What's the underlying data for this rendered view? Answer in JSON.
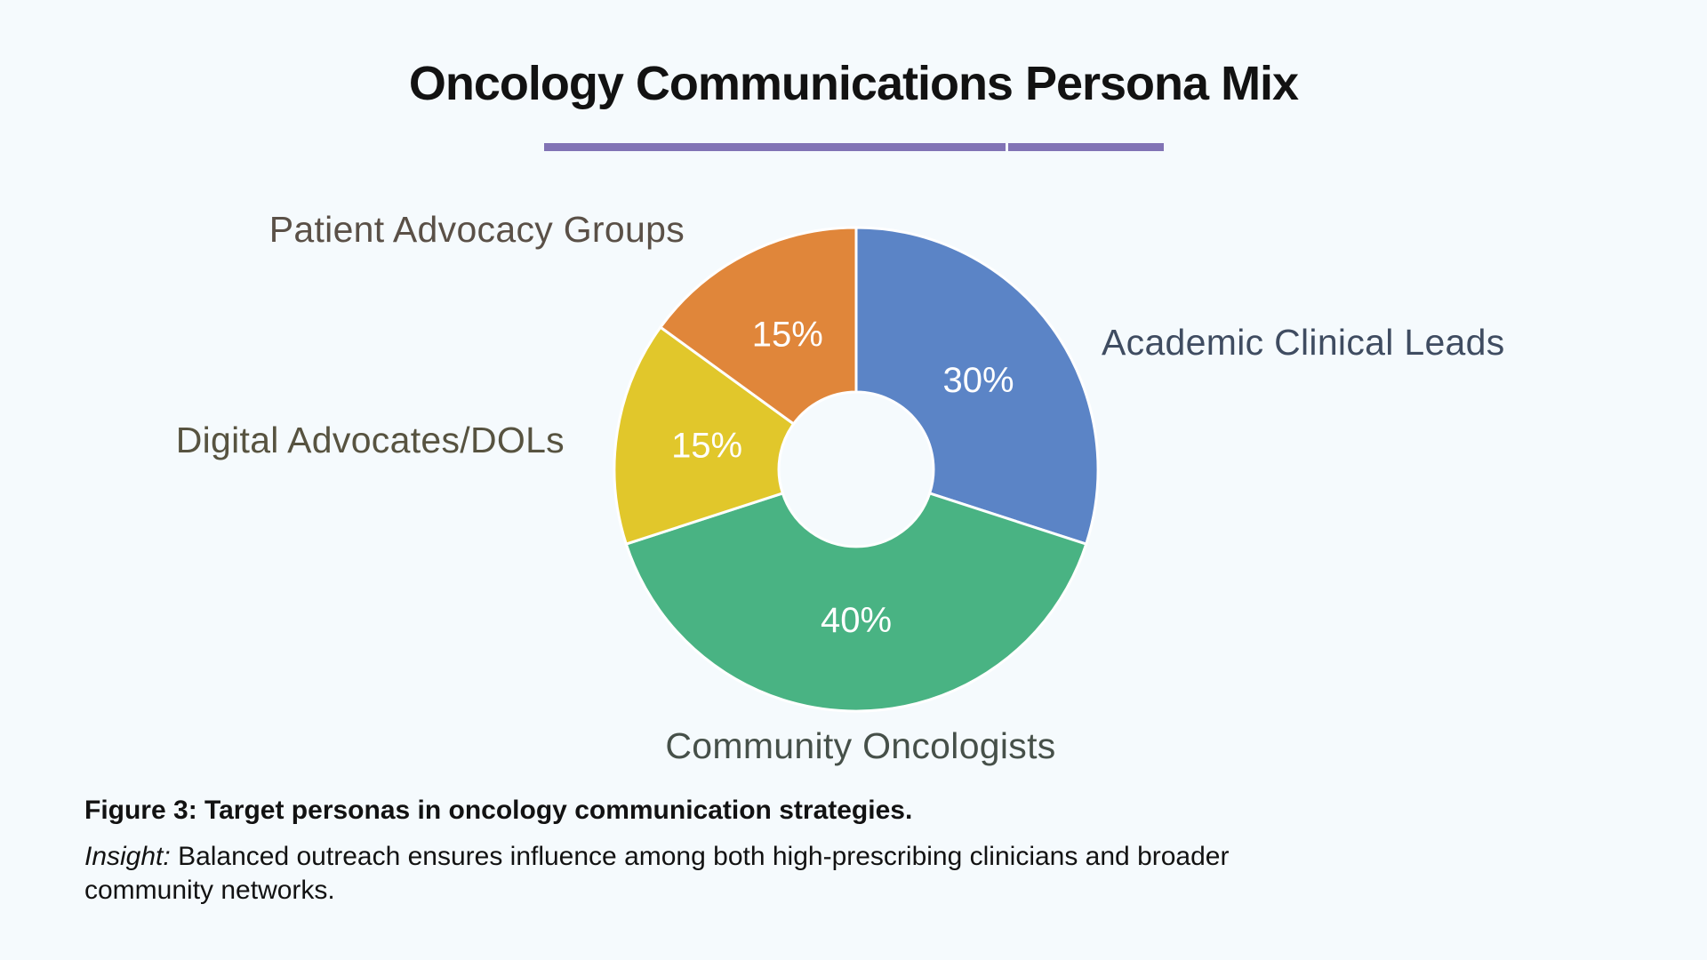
{
  "page": {
    "background": "#f5fafd",
    "accent_underline_color": "#8173b5",
    "text_color": "#121212"
  },
  "chart_data": {
    "type": "pie",
    "donut": true,
    "donut_hole_ratio": 0.32,
    "title": "Oncology Communications Persona Mix",
    "categories": [
      "Academic Clinical Leads",
      "Community Oncologists",
      "Digital Advocates/DOLs",
      "Patient Advocacy Groups"
    ],
    "values": [
      30,
      40,
      15,
      15
    ],
    "start_angle_deg": 0,
    "direction": "clockwise",
    "legend": "none",
    "value_label_format": "percent",
    "slices": [
      {
        "label": "Academic Clinical Leads",
        "value": 30,
        "percent_label": "30%",
        "color": "#5b84c6",
        "label_color": "#3f4c61"
      },
      {
        "label": "Community Oncologists",
        "value": 40,
        "percent_label": "40%",
        "color": "#49b383",
        "label_color": "#465049"
      },
      {
        "label": "Digital Advocates/DOLs",
        "value": 15,
        "percent_label": "15%",
        "color": "#e1c72b",
        "label_color": "#575340"
      },
      {
        "label": "Patient Advocacy Groups",
        "value": 15,
        "percent_label": "15%",
        "color": "#e0863a",
        "label_color": "#5a5047"
      }
    ]
  },
  "caption": {
    "figure_label": "Figure 3: Target personas in oncology communication strategies.",
    "insight_prefix": "Insight:",
    "insight_line1": " Balanced outreach ensures influence among both high-prescribing clinicians and broader",
    "insight_line2": "community networks."
  }
}
